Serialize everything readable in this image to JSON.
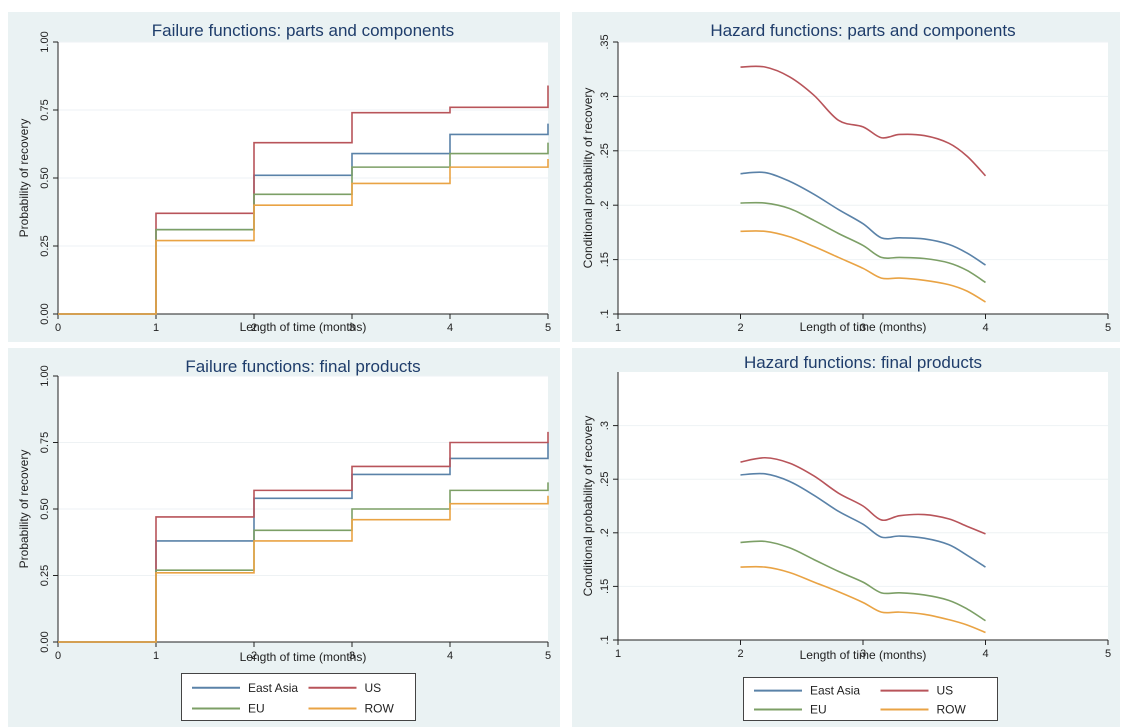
{
  "colors": {
    "east_asia": "#5a82a8",
    "us": "#b8545a",
    "eu": "#7c9f66",
    "row": "#e9a344",
    "title": "#1f3d6b",
    "axis": "#222222",
    "panel_bg": "#eaf2f3",
    "plot_bg": "#ffffff"
  },
  "chart_data": [
    {
      "type": "line",
      "step": true,
      "title": "Failure functions: parts and components",
      "xlabel": "Length of time (months)",
      "ylabel": "Probability of recovery",
      "xlim": [
        0,
        5
      ],
      "ylim": [
        0,
        1
      ],
      "xticks": [
        0,
        1,
        2,
        3,
        4,
        5
      ],
      "xtick_labels": [
        "0",
        "1",
        "2",
        "3",
        "4",
        "5"
      ],
      "yticks": [
        0,
        0.25,
        0.5,
        0.75,
        1
      ],
      "ytick_labels": [
        "0.00",
        "0.25",
        "0.50",
        "0.75",
        "1.00"
      ],
      "grid": true,
      "x": [
        0,
        1,
        2,
        3,
        4,
        5
      ],
      "series": [
        {
          "name": "East Asia",
          "values": [
            0,
            0.31,
            0.51,
            0.59,
            0.66,
            0.7
          ]
        },
        {
          "name": "US",
          "values": [
            0,
            0.37,
            0.63,
            0.74,
            0.76,
            0.84
          ]
        },
        {
          "name": "EU",
          "values": [
            0,
            0.31,
            0.44,
            0.54,
            0.59,
            0.63
          ]
        },
        {
          "name": "ROW",
          "values": [
            0,
            0.27,
            0.4,
            0.48,
            0.54,
            0.57
          ]
        }
      ]
    },
    {
      "type": "line",
      "step": false,
      "title": "Hazard functions: parts and components",
      "xlabel": "Length of time (months)",
      "ylabel": "Conditional probability of recovery",
      "xlim": [
        1,
        5
      ],
      "ylim": [
        0.1,
        0.35
      ],
      "xticks": [
        1,
        2,
        3,
        4,
        5
      ],
      "xtick_labels": [
        "1",
        "2",
        "3",
        "4",
        "5"
      ],
      "yticks": [
        0.1,
        0.15,
        0.2,
        0.25,
        0.3,
        0.35
      ],
      "ytick_labels": [
        ".1",
        ".15",
        ".2",
        ".25",
        ".3",
        ".35"
      ],
      "grid": true,
      "x": [
        2.0,
        2.2,
        2.4,
        2.6,
        2.8,
        3.0,
        3.15,
        3.3,
        3.5,
        3.7,
        3.85,
        4.0
      ],
      "series": [
        {
          "name": "East Asia",
          "values": [
            0.229,
            0.23,
            0.222,
            0.21,
            0.196,
            0.183,
            0.17,
            0.17,
            0.169,
            0.164,
            0.156,
            0.145
          ]
        },
        {
          "name": "US",
          "values": [
            0.327,
            0.327,
            0.318,
            0.301,
            0.278,
            0.272,
            0.262,
            0.265,
            0.264,
            0.257,
            0.245,
            0.227
          ]
        },
        {
          "name": "EU",
          "values": [
            0.202,
            0.202,
            0.197,
            0.186,
            0.174,
            0.163,
            0.152,
            0.152,
            0.151,
            0.147,
            0.14,
            0.129
          ]
        },
        {
          "name": "ROW",
          "values": [
            0.176,
            0.176,
            0.171,
            0.162,
            0.152,
            0.142,
            0.133,
            0.133,
            0.131,
            0.127,
            0.121,
            0.111
          ]
        }
      ]
    },
    {
      "type": "line",
      "step": true,
      "title": "Failure functions: final products",
      "xlabel": "Length of time (months)",
      "ylabel": "Probability of recovery",
      "xlim": [
        0,
        5
      ],
      "ylim": [
        0,
        1
      ],
      "xticks": [
        0,
        1,
        2,
        3,
        4,
        5
      ],
      "xtick_labels": [
        "0",
        "1",
        "2",
        "3",
        "4",
        "5"
      ],
      "yticks": [
        0,
        0.25,
        0.5,
        0.75,
        1
      ],
      "ytick_labels": [
        "0.00",
        "0.25",
        "0.50",
        "0.75",
        "1.00"
      ],
      "grid": true,
      "x": [
        0,
        1,
        2,
        3,
        4,
        5
      ],
      "series": [
        {
          "name": "East Asia",
          "values": [
            0,
            0.38,
            0.54,
            0.63,
            0.69,
            0.75
          ]
        },
        {
          "name": "US",
          "values": [
            0,
            0.47,
            0.57,
            0.66,
            0.75,
            0.79
          ]
        },
        {
          "name": "EU",
          "values": [
            0,
            0.27,
            0.42,
            0.5,
            0.57,
            0.6
          ]
        },
        {
          "name": "ROW",
          "values": [
            0,
            0.26,
            0.38,
            0.46,
            0.52,
            0.55
          ]
        }
      ]
    },
    {
      "type": "line",
      "step": false,
      "title": "Hazard functions: final products",
      "xlabel": "Length of time (months)",
      "ylabel": "Conditional probability of recovery",
      "xlim": [
        1,
        5
      ],
      "ylim": [
        0.1,
        0.35
      ],
      "xticks": [
        1,
        2,
        3,
        4,
        5
      ],
      "xtick_labels": [
        "1",
        "2",
        "3",
        "4",
        "5"
      ],
      "yticks": [
        0.1,
        0.15,
        0.2,
        0.25,
        0.3
      ],
      "ytick_labels": [
        ".1",
        ".15",
        ".2",
        ".25",
        ".3"
      ],
      "grid": true,
      "x": [
        2.0,
        2.2,
        2.4,
        2.6,
        2.8,
        3.0,
        3.15,
        3.3,
        3.5,
        3.7,
        3.85,
        4.0
      ],
      "series": [
        {
          "name": "East Asia",
          "values": [
            0.254,
            0.255,
            0.248,
            0.235,
            0.22,
            0.208,
            0.196,
            0.197,
            0.195,
            0.189,
            0.179,
            0.168
          ]
        },
        {
          "name": "US",
          "values": [
            0.266,
            0.27,
            0.265,
            0.253,
            0.237,
            0.225,
            0.212,
            0.216,
            0.217,
            0.213,
            0.206,
            0.199
          ]
        },
        {
          "name": "EU",
          "values": [
            0.191,
            0.192,
            0.186,
            0.175,
            0.164,
            0.154,
            0.144,
            0.144,
            0.142,
            0.137,
            0.129,
            0.118
          ]
        },
        {
          "name": "ROW",
          "values": [
            0.168,
            0.168,
            0.163,
            0.154,
            0.145,
            0.135,
            0.126,
            0.126,
            0.124,
            0.119,
            0.114,
            0.107
          ]
        }
      ]
    }
  ],
  "legends": [
    {
      "items": [
        "East Asia",
        "US",
        "EU",
        "ROW"
      ]
    },
    {
      "items": [
        "East Asia",
        "US",
        "EU",
        "ROW"
      ]
    }
  ]
}
